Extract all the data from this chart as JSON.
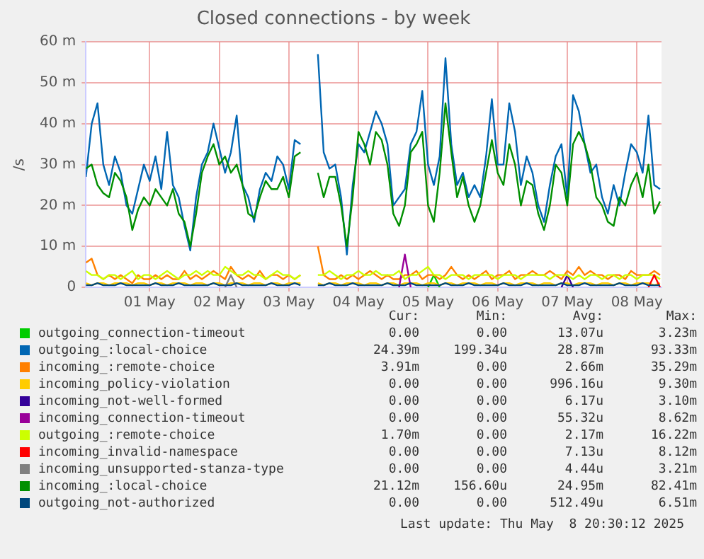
{
  "chart_data": {
    "type": "line",
    "title": "Closed connections - by week",
    "ylabel": "/s",
    "x": [
      "2025-04-30T14:00",
      "2025-04-30T16:00",
      "2025-04-30T18:00",
      "2025-04-30T20:00",
      "2025-04-30T22:00",
      "2025-05-01T00:00",
      "2025-05-01T02:00",
      "2025-05-01T04:00",
      "2025-05-01T06:00",
      "2025-05-01T08:00",
      "2025-05-01T10:00",
      "2025-05-01T12:00",
      "2025-05-01T14:00",
      "2025-05-01T16:00",
      "2025-05-01T18:00",
      "2025-05-01T20:00",
      "2025-05-01T22:00",
      "2025-05-02T00:00",
      "2025-05-02T02:00",
      "2025-05-02T04:00",
      "2025-05-02T06:00",
      "2025-05-02T08:00",
      "2025-05-02T10:00",
      "2025-05-02T12:00",
      "2025-05-02T14:00",
      "2025-05-02T16:00",
      "2025-05-02T18:00",
      "2025-05-02T20:00",
      "2025-05-02T22:00",
      "2025-05-03T00:00",
      "2025-05-03T02:00",
      "2025-05-03T04:00",
      "2025-05-03T06:00",
      "2025-05-03T08:00",
      "2025-05-03T10:00",
      "2025-05-03T12:00",
      "2025-05-03T14:00",
      "2025-05-03T16:00",
      "2025-05-03T18:00",
      "2025-05-03T20:00",
      "2025-05-03T22:00",
      "2025-05-04T00:00",
      "2025-05-04T02:00",
      "2025-05-04T04:00",
      "2025-05-04T06:00",
      "2025-05-04T08:00",
      "2025-05-04T10:00",
      "2025-05-04T12:00",
      "2025-05-04T14:00",
      "2025-05-04T16:00",
      "2025-05-04T18:00",
      "2025-05-04T20:00",
      "2025-05-04T22:00",
      "2025-05-05T00:00",
      "2025-05-05T02:00",
      "2025-05-05T04:00",
      "2025-05-05T06:00",
      "2025-05-05T08:00",
      "2025-05-05T10:00",
      "2025-05-05T12:00",
      "2025-05-05T14:00",
      "2025-05-05T16:00",
      "2025-05-05T18:00",
      "2025-05-05T20:00",
      "2025-05-05T22:00",
      "2025-05-06T00:00",
      "2025-05-06T02:00",
      "2025-05-06T04:00",
      "2025-05-06T06:00",
      "2025-05-06T08:00",
      "2025-05-06T10:00",
      "2025-05-06T12:00",
      "2025-05-06T14:00",
      "2025-05-06T16:00",
      "2025-05-06T18:00",
      "2025-05-06T20:00",
      "2025-05-06T22:00",
      "2025-05-07T00:00",
      "2025-05-07T02:00",
      "2025-05-07T04:00",
      "2025-05-07T06:00",
      "2025-05-07T08:00",
      "2025-05-07T10:00",
      "2025-05-07T12:00",
      "2025-05-07T14:00",
      "2025-05-07T16:00",
      "2025-05-07T18:00",
      "2025-05-07T20:00",
      "2025-05-07T22:00",
      "2025-05-08T00:00",
      "2025-05-08T02:00",
      "2025-05-08T04:00",
      "2025-05-08T06:00",
      "2025-05-08T08:00",
      "2025-05-08T10:00",
      "2025-05-08T12:00",
      "2025-05-08T14:00",
      "2025-05-08T16:00",
      "2025-05-08T18:00",
      "2025-05-08T20:00"
    ],
    "xlim": [
      "2025-04-30T14:00",
      "2025-05-08T20:30"
    ],
    "xticks": [
      {
        "value": "2025-05-01T12:00",
        "label": "01 May"
      },
      {
        "value": "2025-05-02T12:00",
        "label": "02 May"
      },
      {
        "value": "2025-05-03T12:00",
        "label": "03 May"
      },
      {
        "value": "2025-05-04T12:00",
        "label": "04 May"
      },
      {
        "value": "2025-05-05T12:00",
        "label": "05 May"
      },
      {
        "value": "2025-05-06T12:00",
        "label": "06 May"
      },
      {
        "value": "2025-05-07T12:00",
        "label": "07 May"
      },
      {
        "value": "2025-05-08T12:00",
        "label": "08 May"
      }
    ],
    "ylim": [
      0,
      60
    ],
    "yticks": [
      0,
      {
        "value": 10,
        "label": "10 m"
      },
      {
        "value": 20,
        "label": "20 m"
      },
      {
        "value": 30,
        "label": "30 m"
      },
      {
        "value": 40,
        "label": "40 m"
      },
      {
        "value": 50,
        "label": "50 m"
      },
      {
        "value": 60,
        "label": "60 m"
      }
    ],
    "grid": true,
    "legend": "bottom",
    "marker": "none",
    "series": [
      {
        "name": "outgoing_connection-timeout",
        "color": "#00cc00",
        "x": [
          "2025-05-05T12:00",
          "2025-05-05T14:00",
          "2025-05-05T16:00"
        ],
        "values": [
          0,
          3,
          0
        ]
      },
      {
        "name": "outgoing_:local-choice",
        "color": "#0066b3",
        "values": [
          27,
          40,
          45,
          30,
          25,
          32,
          28,
          20,
          18,
          24,
          30,
          26,
          32,
          24,
          38,
          25,
          22,
          15,
          9,
          22,
          30,
          33,
          40,
          34,
          28,
          33,
          42,
          25,
          22,
          16,
          24,
          28,
          26,
          32,
          30,
          24,
          36,
          35,
          null,
          null,
          57,
          33,
          29,
          30,
          22,
          8,
          25,
          35,
          33,
          38,
          43,
          40,
          35,
          20,
          22,
          24,
          35,
          38,
          48,
          30,
          25,
          32,
          56,
          35,
          25,
          28,
          22,
          25,
          22,
          32,
          46,
          30,
          30,
          45,
          38,
          25,
          32,
          28,
          20,
          16,
          25,
          32,
          35,
          22,
          47,
          43,
          35,
          28,
          30,
          22,
          18,
          25,
          20,
          28,
          35,
          33,
          28,
          42,
          25,
          24
        ]
      },
      {
        "name": "incoming_:remote-choice",
        "color": "#ff8000",
        "values": [
          6,
          7,
          3,
          2,
          3,
          2,
          3,
          2,
          1,
          3,
          2,
          2,
          3,
          2,
          3,
          2,
          2,
          4,
          2,
          3,
          2,
          3,
          4,
          3,
          2,
          5,
          3,
          2,
          3,
          2,
          4,
          2,
          3,
          3,
          2,
          3,
          2,
          3,
          null,
          null,
          10,
          3,
          2,
          2,
          3,
          2,
          3,
          2,
          3,
          4,
          3,
          2,
          3,
          2,
          2,
          3,
          3,
          4,
          2,
          3,
          3,
          2,
          3,
          5,
          3,
          2,
          3,
          2,
          3,
          4,
          2,
          3,
          3,
          4,
          2,
          3,
          3,
          4,
          3,
          3,
          4,
          3,
          2,
          4,
          3,
          5,
          3,
          4,
          3,
          3,
          2,
          3,
          3,
          2,
          4,
          3,
          3,
          3,
          4,
          3
        ]
      },
      {
        "name": "incoming_policy-violation",
        "color": "#ffcc00",
        "values": [
          1,
          0.5,
          1,
          1,
          0.5,
          1,
          1,
          1,
          0.5,
          1,
          1,
          0.5,
          1,
          1,
          0.5,
          1,
          1,
          1,
          0.5,
          1,
          1,
          0.5,
          1,
          1,
          0.5,
          1,
          1,
          1,
          0.5,
          1,
          1,
          0.5,
          1,
          1,
          0.5,
          1,
          1,
          1,
          null,
          null,
          1,
          0.5,
          1,
          1,
          0.5,
          1,
          1,
          1,
          0.5,
          1,
          1,
          0.5,
          1,
          1,
          0.5,
          1,
          1,
          1,
          0.5,
          1,
          1,
          0.5,
          1,
          1,
          0.5,
          1,
          1,
          1,
          0.5,
          1,
          1,
          0.5,
          1,
          1,
          0.5,
          1,
          1,
          1,
          0.5,
          1,
          1,
          0.5,
          1,
          1,
          0.5,
          1,
          1,
          1,
          0.5,
          1,
          1,
          0.5,
          1,
          1,
          0.5,
          1,
          1,
          1,
          0.5,
          1
        ]
      },
      {
        "name": "incoming_not-well-formed",
        "color": "#330099",
        "x": [
          "2025-05-07T10:00",
          "2025-05-07T12:00",
          "2025-05-07T14:00"
        ],
        "values": [
          0,
          3,
          0
        ]
      },
      {
        "name": "incoming_connection-timeout",
        "color": "#990099",
        "x": [
          "2025-05-05T02:00",
          "2025-05-05T04:00",
          "2025-05-05T06:00"
        ],
        "values": [
          0,
          8,
          0
        ]
      },
      {
        "name": "outgoing_:remote-choice",
        "color": "#ccff00",
        "values": [
          4,
          3,
          3,
          2,
          3,
          3,
          2,
          3,
          4,
          2,
          3,
          3,
          2,
          3,
          4,
          3,
          2,
          3,
          3,
          4,
          3,
          4,
          3,
          3,
          5,
          4,
          3,
          3,
          4,
          3,
          3,
          2,
          3,
          4,
          3,
          3,
          2,
          3,
          null,
          null,
          3,
          3,
          4,
          3,
          2,
          3,
          3,
          4,
          3,
          3,
          4,
          3,
          3,
          3,
          4,
          2,
          3,
          3,
          4,
          5,
          3,
          3,
          2,
          3,
          3,
          3,
          2,
          3,
          3,
          3,
          3,
          2,
          3,
          3,
          3,
          2,
          3,
          3,
          3,
          3,
          2,
          3,
          3,
          3,
          2,
          3,
          2,
          3,
          3,
          2,
          3,
          3,
          2,
          3,
          3,
          2,
          3,
          3,
          3,
          2
        ]
      },
      {
        "name": "incoming_invalid-namespace",
        "color": "#ff0000",
        "x": [
          "2025-05-08T16:00",
          "2025-05-08T18:00",
          "2025-05-08T20:00"
        ],
        "values": [
          0,
          3,
          0
        ]
      },
      {
        "name": "incoming_unsupported-stanza-type",
        "color": "#808080",
        "x": [
          "2025-05-02T14:00",
          "2025-05-02T16:00",
          "2025-05-02T18:00"
        ],
        "values": [
          0,
          3,
          0
        ]
      },
      {
        "name": "incoming_:local-choice",
        "color": "#008f00",
        "values": [
          29,
          30,
          25,
          23,
          22,
          28,
          26,
          22,
          14,
          19,
          22,
          20,
          24,
          22,
          20,
          24,
          18,
          16,
          10,
          18,
          28,
          32,
          35,
          30,
          32,
          28,
          30,
          25,
          18,
          17,
          22,
          26,
          24,
          24,
          27,
          22,
          32,
          33,
          null,
          null,
          28,
          22,
          27,
          27,
          20,
          10,
          22,
          38,
          35,
          30,
          38,
          36,
          30,
          18,
          15,
          20,
          33,
          35,
          38,
          20,
          16,
          28,
          45,
          33,
          22,
          27,
          20,
          16,
          20,
          28,
          36,
          28,
          25,
          35,
          30,
          20,
          26,
          25,
          18,
          14,
          20,
          30,
          28,
          20,
          35,
          38,
          35,
          30,
          22,
          20,
          16,
          15,
          22,
          20,
          25,
          28,
          22,
          30,
          18,
          21
        ]
      },
      {
        "name": "outgoing_not-authorized",
        "color": "#00487d",
        "values": [
          0.5,
          0.5,
          1,
          0.5,
          0.5,
          0.5,
          1,
          0.5,
          0.5,
          0.5,
          0.5,
          0.5,
          1,
          0.5,
          0.5,
          0.5,
          1,
          0.5,
          0.5,
          0.5,
          0.5,
          0.5,
          1,
          0.5,
          0.5,
          0.5,
          1,
          0.5,
          0.5,
          0.5,
          0.5,
          0.5,
          1,
          0.5,
          0.5,
          0.5,
          1,
          0.5,
          null,
          null,
          0.5,
          0.5,
          1,
          0.5,
          0.5,
          0.5,
          1,
          0.5,
          0.5,
          0.5,
          0.5,
          0.5,
          1,
          0.5,
          0.5,
          0.5,
          1,
          0.5,
          0.5,
          0.5,
          0.5,
          0.5,
          1,
          0.5,
          0.5,
          0.5,
          1,
          0.5,
          0.5,
          0.5,
          0.5,
          0.5,
          1,
          0.5,
          0.5,
          0.5,
          1,
          0.5,
          0.5,
          0.5,
          0.5,
          0.5,
          1,
          0.5,
          0.5,
          0.5,
          1,
          0.5,
          0.5,
          0.5,
          0.5,
          0.5,
          1,
          0.5,
          0.5,
          0.5,
          1,
          0.5,
          0.5,
          0.5
        ]
      }
    ],
    "annotations": [
      "Cur:",
      "Min:",
      "Avg:",
      "Max:",
      "0.00",
      "0.00",
      "13.07u",
      "3.23m",
      "24.39m",
      "199.34u",
      "28.87m",
      "93.33m",
      "3.91m",
      "0.00",
      "2.66m",
      "35.29m",
      "0.00",
      "0.00",
      "996.16u",
      "9.30m",
      "0.00",
      "0.00",
      "6.17u",
      "3.10m",
      "0.00",
      "0.00",
      "55.32u",
      "8.62m",
      "1.70m",
      "0.00",
      "2.17m",
      "16.22m",
      "0.00",
      "0.00",
      "7.13u",
      "8.12m",
      "0.00",
      "0.00",
      "4.44u",
      "3.21m",
      "21.12m",
      "156.60u",
      "24.95m",
      "82.41m",
      "0.00",
      "0.00",
      "512.49u",
      "6.51m",
      "Last update: Thu May  8 20:30:12 2025"
    ]
  }
}
